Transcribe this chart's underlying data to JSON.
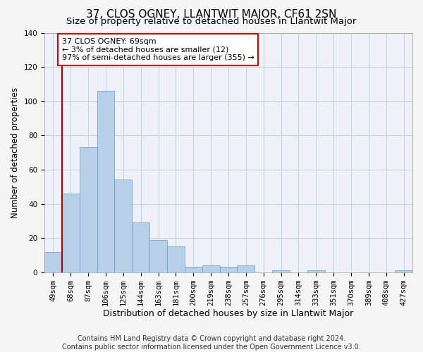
{
  "title": "37, CLOS OGNEY, LLANTWIT MAJOR, CF61 2SN",
  "subtitle": "Size of property relative to detached houses in Llantwit Major",
  "xlabel": "Distribution of detached houses by size in Llantwit Major",
  "ylabel": "Number of detached properties",
  "categories": [
    "49sqm",
    "68sqm",
    "87sqm",
    "106sqm",
    "125sqm",
    "144sqm",
    "163sqm",
    "181sqm",
    "200sqm",
    "219sqm",
    "238sqm",
    "257sqm",
    "276sqm",
    "295sqm",
    "314sqm",
    "333sqm",
    "351sqm",
    "370sqm",
    "389sqm",
    "408sqm",
    "427sqm"
  ],
  "values": [
    12,
    46,
    73,
    106,
    54,
    29,
    19,
    15,
    3,
    4,
    3,
    4,
    0,
    1,
    0,
    1,
    0,
    0,
    0,
    0,
    1
  ],
  "bar_color": "#b8cfe8",
  "bar_edge_color": "#6699cc",
  "ylim": [
    0,
    140
  ],
  "yticks": [
    0,
    20,
    40,
    60,
    80,
    100,
    120,
    140
  ],
  "red_line_x": 0.5,
  "annotation_text": "37 CLOS OGNEY: 69sqm\n← 3% of detached houses are smaller (12)\n97% of semi-detached houses are larger (355) →",
  "annotation_box_color": "#ffffff",
  "annotation_box_edge": "#cc0000",
  "footer_line1": "Contains HM Land Registry data © Crown copyright and database right 2024.",
  "footer_line2": "Contains public sector information licensed under the Open Government Licence v3.0.",
  "background_color": "#eef2f8",
  "grid_color": "#c8d0e0",
  "title_fontsize": 11,
  "subtitle_fontsize": 9.5,
  "xlabel_fontsize": 9,
  "ylabel_fontsize": 8.5,
  "tick_fontsize": 7.5,
  "annotation_fontsize": 8,
  "footer_fontsize": 7
}
